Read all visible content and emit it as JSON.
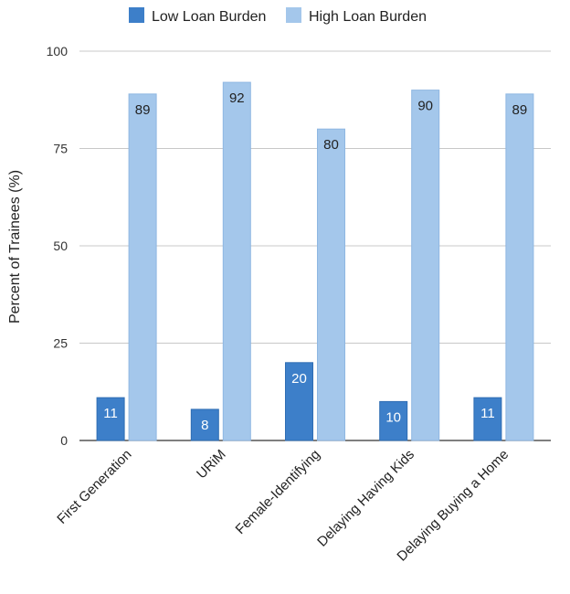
{
  "chart_data": {
    "type": "bar",
    "title": "",
    "xlabel": "",
    "ylabel": "Percent of Trainees (%)",
    "ylim": [
      0,
      100
    ],
    "yticks": [
      0,
      25,
      50,
      75,
      100
    ],
    "grid": true,
    "legend_position": "top-center",
    "categories": [
      "First Generation",
      "URiM",
      "Female-Identifying",
      "Delaying Having Kids",
      "Delaying Buying a Home"
    ],
    "series": [
      {
        "name": "Low Loan Burden",
        "color": "#3d7fc9",
        "values": [
          11,
          8,
          20,
          10,
          11
        ]
      },
      {
        "name": "High Loan Burden",
        "color": "#a4c7eb",
        "values": [
          89,
          92,
          80,
          90,
          89
        ]
      }
    ]
  }
}
